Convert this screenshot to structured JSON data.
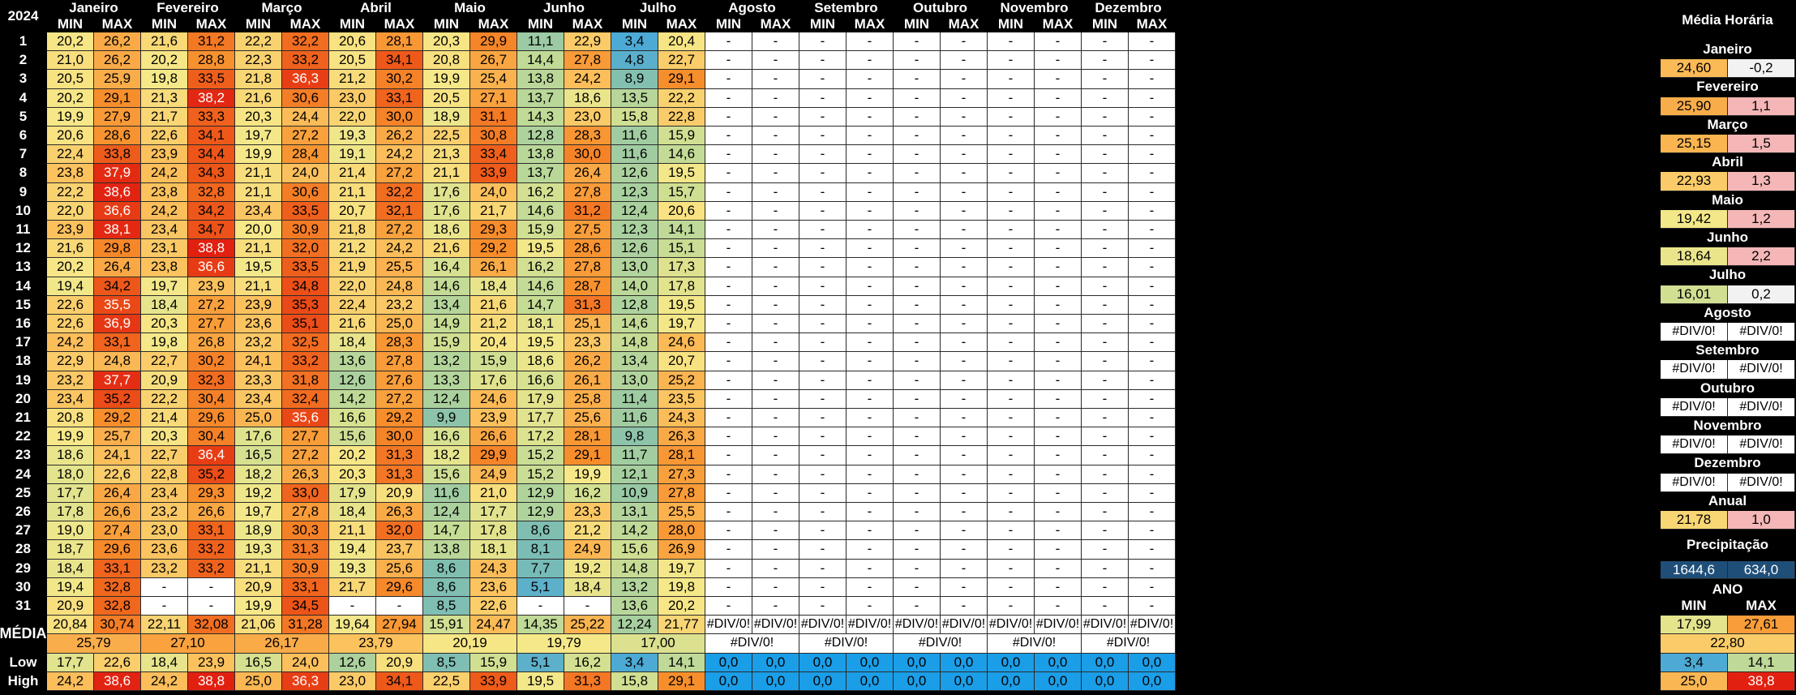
{
  "sheet": {
    "year_label": "2024",
    "months": [
      "Janeiro",
      "Fevereiro",
      "Março",
      "Abril",
      "Maio",
      "Junho",
      "Julho",
      "Agosto",
      "Setembro",
      "Outubro",
      "Novembro",
      "Dezembro"
    ],
    "min_label": "MIN",
    "max_label": "MAX",
    "dash": "-",
    "error": "#DIV/0!",
    "row_labels": {
      "media": "MÉDIA",
      "low": "Low",
      "high": "High"
    },
    "days": [
      "1",
      "2",
      "3",
      "4",
      "5",
      "6",
      "7",
      "8",
      "9",
      "10",
      "11",
      "12",
      "13",
      "14",
      "15",
      "16",
      "17",
      "18",
      "19",
      "20",
      "21",
      "22",
      "23",
      "24",
      "25",
      "26",
      "27",
      "28",
      "29",
      "30",
      "31"
    ],
    "daily": [
      [
        [
          "20,2",
          "26,2"
        ],
        [
          "21,6",
          "31,2"
        ],
        [
          "22,2",
          "32,2"
        ],
        [
          "20,6",
          "28,1"
        ],
        [
          "20,3",
          "29,9"
        ],
        [
          "11,1",
          "22,9"
        ],
        [
          "3,4",
          "20,4"
        ]
      ],
      [
        [
          "21,0",
          "26,2"
        ],
        [
          "20,2",
          "28,8"
        ],
        [
          "22,3",
          "33,2"
        ],
        [
          "20,5",
          "34,1"
        ],
        [
          "20,8",
          "26,7"
        ],
        [
          "14,4",
          "27,8"
        ],
        [
          "4,8",
          "22,7"
        ]
      ],
      [
        [
          "20,5",
          "25,9"
        ],
        [
          "19,8",
          "33,5"
        ],
        [
          "21,8",
          "36,3"
        ],
        [
          "21,2",
          "30,2"
        ],
        [
          "19,9",
          "25,4"
        ],
        [
          "13,8",
          "24,2"
        ],
        [
          "8,9",
          "29,1"
        ]
      ],
      [
        [
          "20,2",
          "29,1"
        ],
        [
          "21,3",
          "38,2"
        ],
        [
          "21,6",
          "30,6"
        ],
        [
          "23,0",
          "33,1"
        ],
        [
          "20,5",
          "27,1"
        ],
        [
          "13,7",
          "18,6"
        ],
        [
          "13,5",
          "22,2"
        ]
      ],
      [
        [
          "19,9",
          "27,9"
        ],
        [
          "21,7",
          "33,3"
        ],
        [
          "20,3",
          "24,4"
        ],
        [
          "22,0",
          "30,0"
        ],
        [
          "18,9",
          "31,1"
        ],
        [
          "14,3",
          "23,0"
        ],
        [
          "15,8",
          "22,8"
        ]
      ],
      [
        [
          "20,6",
          "28,6"
        ],
        [
          "22,6",
          "34,1"
        ],
        [
          "19,7",
          "27,2"
        ],
        [
          "19,3",
          "26,2"
        ],
        [
          "22,5",
          "30,8"
        ],
        [
          "12,8",
          "28,3"
        ],
        [
          "11,6",
          "15,9"
        ]
      ],
      [
        [
          "22,4",
          "33,8"
        ],
        [
          "23,9",
          "34,4"
        ],
        [
          "19,9",
          "28,4"
        ],
        [
          "19,1",
          "24,2"
        ],
        [
          "21,3",
          "33,4"
        ],
        [
          "13,8",
          "30,0"
        ],
        [
          "11,6",
          "14,6"
        ]
      ],
      [
        [
          "23,8",
          "37,9"
        ],
        [
          "24,2",
          "34,3"
        ],
        [
          "21,1",
          "24,0"
        ],
        [
          "21,4",
          "27,2"
        ],
        [
          "21,1",
          "33,9"
        ],
        [
          "13,7",
          "26,4"
        ],
        [
          "12,6",
          "19,5"
        ]
      ],
      [
        [
          "22,2",
          "38,6"
        ],
        [
          "23,8",
          "32,8"
        ],
        [
          "21,1",
          "30,6"
        ],
        [
          "21,1",
          "32,2"
        ],
        [
          "17,6",
          "24,0"
        ],
        [
          "16,2",
          "27,8"
        ],
        [
          "12,3",
          "15,7"
        ]
      ],
      [
        [
          "22,0",
          "36,6"
        ],
        [
          "24,2",
          "34,2"
        ],
        [
          "23,4",
          "33,5"
        ],
        [
          "20,7",
          "32,1"
        ],
        [
          "17,6",
          "21,7"
        ],
        [
          "14,6",
          "31,2"
        ],
        [
          "12,4",
          "20,6"
        ]
      ],
      [
        [
          "23,9",
          "38,1"
        ],
        [
          "23,4",
          "34,7"
        ],
        [
          "20,0",
          "30,9"
        ],
        [
          "21,8",
          "27,2"
        ],
        [
          "18,6",
          "29,3"
        ],
        [
          "15,9",
          "27,5"
        ],
        [
          "12,3",
          "14,1"
        ]
      ],
      [
        [
          "21,6",
          "29,8"
        ],
        [
          "23,1",
          "38,8"
        ],
        [
          "21,1",
          "32,0"
        ],
        [
          "21,2",
          "24,2"
        ],
        [
          "21,6",
          "29,2"
        ],
        [
          "19,5",
          "28,6"
        ],
        [
          "12,6",
          "15,1"
        ]
      ],
      [
        [
          "20,2",
          "26,4"
        ],
        [
          "23,8",
          "36,6"
        ],
        [
          "19,5",
          "33,5"
        ],
        [
          "21,9",
          "25,5"
        ],
        [
          "16,4",
          "26,1"
        ],
        [
          "16,2",
          "27,8"
        ],
        [
          "13,0",
          "17,3"
        ]
      ],
      [
        [
          "19,4",
          "34,2"
        ],
        [
          "19,7",
          "23,9"
        ],
        [
          "21,1",
          "34,8"
        ],
        [
          "22,0",
          "24,8"
        ],
        [
          "14,6",
          "18,4"
        ],
        [
          "14,6",
          "28,7"
        ],
        [
          "14,0",
          "17,8"
        ]
      ],
      [
        [
          "22,6",
          "35,5"
        ],
        [
          "18,4",
          "27,2"
        ],
        [
          "23,9",
          "35,3"
        ],
        [
          "22,4",
          "23,2"
        ],
        [
          "13,4",
          "21,6"
        ],
        [
          "14,7",
          "31,3"
        ],
        [
          "12,8",
          "19,5"
        ]
      ],
      [
        [
          "22,6",
          "36,9"
        ],
        [
          "20,3",
          "27,7"
        ],
        [
          "23,6",
          "35,1"
        ],
        [
          "21,6",
          "25,0"
        ],
        [
          "14,9",
          "21,2"
        ],
        [
          "18,1",
          "25,1"
        ],
        [
          "14,6",
          "19,7"
        ]
      ],
      [
        [
          "24,2",
          "33,1"
        ],
        [
          "19,8",
          "26,8"
        ],
        [
          "23,2",
          "32,5"
        ],
        [
          "18,4",
          "28,3"
        ],
        [
          "15,9",
          "20,4"
        ],
        [
          "19,5",
          "23,3"
        ],
        [
          "14,8",
          "24,6"
        ]
      ],
      [
        [
          "22,9",
          "24,8"
        ],
        [
          "22,7",
          "30,2"
        ],
        [
          "24,1",
          "33,2"
        ],
        [
          "13,6",
          "27,8"
        ],
        [
          "13,2",
          "15,9"
        ],
        [
          "18,6",
          "26,2"
        ],
        [
          "13,4",
          "20,7"
        ]
      ],
      [
        [
          "23,2",
          "37,7"
        ],
        [
          "20,9",
          "32,3"
        ],
        [
          "23,3",
          "31,8"
        ],
        [
          "12,6",
          "27,6"
        ],
        [
          "13,3",
          "17,6"
        ],
        [
          "16,6",
          "26,1"
        ],
        [
          "13,0",
          "25,2"
        ]
      ],
      [
        [
          "23,4",
          "35,2"
        ],
        [
          "22,2",
          "30,4"
        ],
        [
          "23,4",
          "32,4"
        ],
        [
          "14,2",
          "27,2"
        ],
        [
          "12,4",
          "24,6"
        ],
        [
          "17,9",
          "25,8"
        ],
        [
          "11,4",
          "23,5"
        ]
      ],
      [
        [
          "20,8",
          "29,2"
        ],
        [
          "21,4",
          "29,6"
        ],
        [
          "25,0",
          "35,6"
        ],
        [
          "16,6",
          "29,2"
        ],
        [
          "9,9",
          "23,9"
        ],
        [
          "17,7",
          "25,6"
        ],
        [
          "11,6",
          "24,3"
        ]
      ],
      [
        [
          "19,9",
          "25,7"
        ],
        [
          "20,3",
          "30,4"
        ],
        [
          "17,6",
          "27,7"
        ],
        [
          "15,6",
          "30,0"
        ],
        [
          "16,6",
          "26,6"
        ],
        [
          "17,2",
          "28,1"
        ],
        [
          "9,8",
          "26,3"
        ]
      ],
      [
        [
          "18,6",
          "24,1"
        ],
        [
          "22,7",
          "36,4"
        ],
        [
          "16,5",
          "27,2"
        ],
        [
          "20,2",
          "31,3"
        ],
        [
          "18,2",
          "29,9"
        ],
        [
          "15,2",
          "29,1"
        ],
        [
          "11,7",
          "28,1"
        ]
      ],
      [
        [
          "18,0",
          "22,6"
        ],
        [
          "22,8",
          "35,2"
        ],
        [
          "18,2",
          "26,3"
        ],
        [
          "20,3",
          "31,3"
        ],
        [
          "15,6",
          "24,9"
        ],
        [
          "15,2",
          "19,9"
        ],
        [
          "12,1",
          "27,3"
        ]
      ],
      [
        [
          "17,7",
          "26,4"
        ],
        [
          "23,4",
          "29,3"
        ],
        [
          "19,2",
          "33,0"
        ],
        [
          "17,9",
          "20,9"
        ],
        [
          "11,6",
          "21,0"
        ],
        [
          "12,9",
          "16,2"
        ],
        [
          "10,9",
          "27,8"
        ]
      ],
      [
        [
          "17,8",
          "26,6"
        ],
        [
          "23,2",
          "26,6"
        ],
        [
          "19,7",
          "27,8"
        ],
        [
          "18,4",
          "26,3"
        ],
        [
          "12,4",
          "17,7"
        ],
        [
          "12,9",
          "23,3"
        ],
        [
          "13,1",
          "25,5"
        ]
      ],
      [
        [
          "19,0",
          "27,4"
        ],
        [
          "23,0",
          "33,1"
        ],
        [
          "18,9",
          "30,3"
        ],
        [
          "21,1",
          "32,0"
        ],
        [
          "14,7",
          "17,8"
        ],
        [
          "8,6",
          "21,2"
        ],
        [
          "14,2",
          "28,0"
        ]
      ],
      [
        [
          "18,7",
          "29,6"
        ],
        [
          "23,6",
          "33,2"
        ],
        [
          "19,3",
          "31,3"
        ],
        [
          "19,4",
          "23,7"
        ],
        [
          "13,8",
          "18,1"
        ],
        [
          "8,1",
          "24,9"
        ],
        [
          "15,6",
          "26,9"
        ]
      ],
      [
        [
          "18,4",
          "33,1"
        ],
        [
          "23,2",
          "33,2"
        ],
        [
          "21,1",
          "30,9"
        ],
        [
          "19,3",
          "25,6"
        ],
        [
          "8,6",
          "24,3"
        ],
        [
          "7,7",
          "19,2"
        ],
        [
          "14,8",
          "19,7"
        ]
      ],
      [
        [
          "19,4",
          "32,8"
        ],
        [
          "-",
          "-"
        ],
        [
          "20,9",
          "33,1"
        ],
        [
          "21,7",
          "29,6"
        ],
        [
          "8,6",
          "23,6"
        ],
        [
          "5,1",
          "18,4"
        ],
        [
          "13,2",
          "19,8"
        ]
      ],
      [
        [
          "20,9",
          "32,8"
        ],
        [
          "-",
          "-"
        ],
        [
          "19,9",
          "34,5"
        ],
        [
          "-",
          "-"
        ],
        [
          "8,5",
          "22,6"
        ],
        [
          "-",
          "-"
        ],
        [
          "13,6",
          "20,2"
        ]
      ]
    ],
    "media_row": [
      [
        "20,84",
        "30,74"
      ],
      [
        "22,11",
        "32,08"
      ],
      [
        "21,06",
        "31,28"
      ],
      [
        "19,64",
        "27,94"
      ],
      [
        "15,91",
        "24,47"
      ],
      [
        "14,35",
        "25,22"
      ],
      [
        "12,24",
        "21,77"
      ]
    ],
    "media_avg": [
      "25,79",
      "27,10",
      "26,17",
      "23,79",
      "20,19",
      "19,79",
      "17,00"
    ],
    "low_row": [
      [
        "17,7",
        "22,6"
      ],
      [
        "18,4",
        "23,9"
      ],
      [
        "16,5",
        "24,0"
      ],
      [
        "12,6",
        "20,9"
      ],
      [
        "8,5",
        "15,9"
      ],
      [
        "5,1",
        "16,2"
      ],
      [
        "3,4",
        "14,1"
      ]
    ],
    "high_row": [
      [
        "24,2",
        "38,6"
      ],
      [
        "24,2",
        "38,8"
      ],
      [
        "25,0",
        "36,3"
      ],
      [
        "23,0",
        "34,1"
      ],
      [
        "22,5",
        "33,9"
      ],
      [
        "19,5",
        "31,3"
      ],
      [
        "15,8",
        "29,1"
      ]
    ],
    "zero": "0,0"
  },
  "side": {
    "title": "Média Horária",
    "months": [
      {
        "name": "Janeiro",
        "a": "24,60",
        "b": "-0,2"
      },
      {
        "name": "Fevereiro",
        "a": "25,90",
        "b": "1,1"
      },
      {
        "name": "Março",
        "a": "25,15",
        "b": "1,5"
      },
      {
        "name": "Abril",
        "a": "22,93",
        "b": "1,3"
      },
      {
        "name": "Maio",
        "a": "19,42",
        "b": "1,2"
      },
      {
        "name": "Junho",
        "a": "18,64",
        "b": "2,2"
      },
      {
        "name": "Julho",
        "a": "16,01",
        "b": "0,2"
      },
      {
        "name": "Agosto",
        "a": "#DIV/0!",
        "b": "#DIV/0!"
      },
      {
        "name": "Setembro",
        "a": "#DIV/0!",
        "b": "#DIV/0!"
      },
      {
        "name": "Outubro",
        "a": "#DIV/0!",
        "b": "#DIV/0!"
      },
      {
        "name": "Novembro",
        "a": "#DIV/0!",
        "b": "#DIV/0!"
      },
      {
        "name": "Dezembro",
        "a": "#DIV/0!",
        "b": "#DIV/0!"
      },
      {
        "name": "Anual",
        "a": "21,78",
        "b": "1,0"
      }
    ],
    "precip_label": "Precipitação",
    "precip_a": "1644,6",
    "precip_b": "634,0",
    "ano_label": "ANO",
    "ano_min_label": "MIN",
    "ano_max_label": "MAX",
    "media_min": "17,99",
    "media_max": "27,61",
    "media_avg": "22,80",
    "low_min": "3,4",
    "low_max": "14,1",
    "high_min": "25,0",
    "high_max": "38,8"
  },
  "colors": {
    "precip_bg": "#1f4e79",
    "zero_bg": "#1b9ee8",
    "neg_bg": "#f2f2f2",
    "pos_bg": "#f4b6b6"
  }
}
